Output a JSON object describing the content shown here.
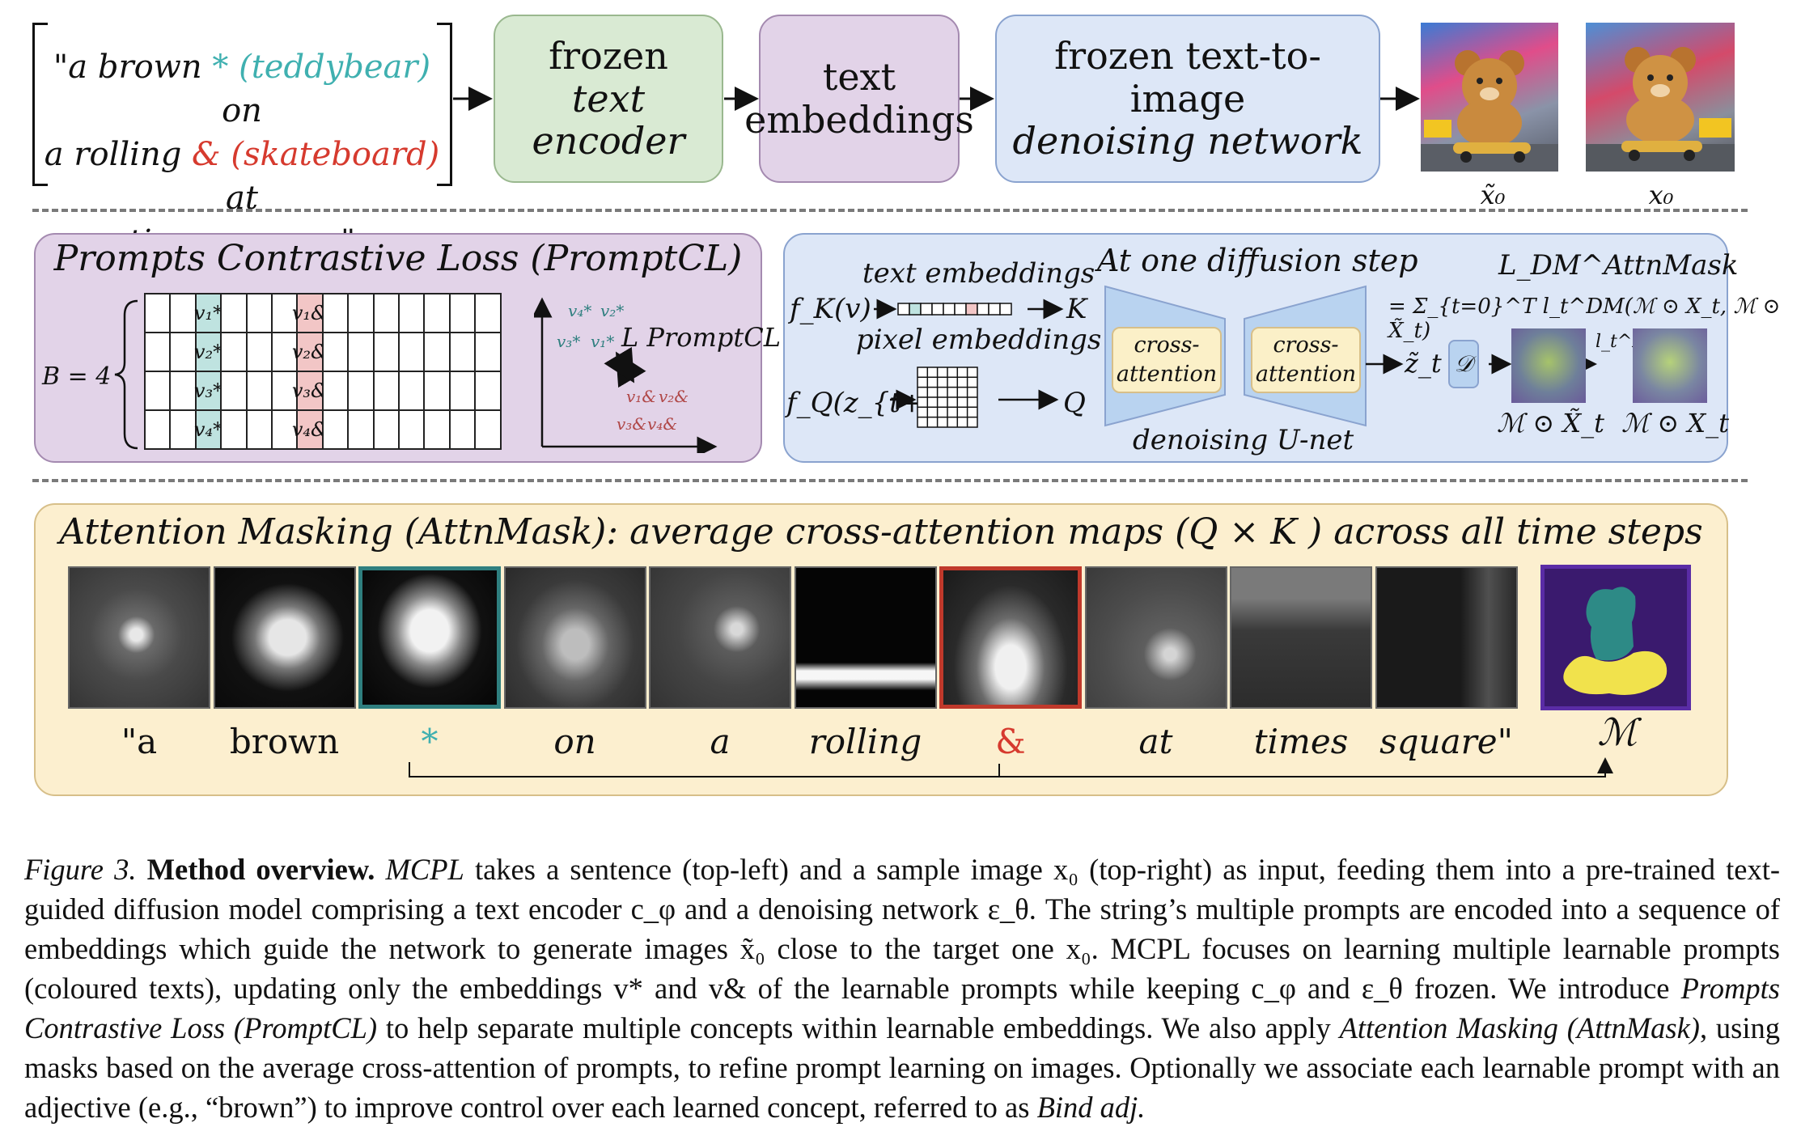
{
  "top_row": {
    "prompt_line1_a": "\"a brown ",
    "prompt_star": "*",
    "prompt_teddy": "(teddybear)",
    "prompt_line1_b": " on",
    "prompt_line2_a": "a rolling ",
    "prompt_amp": "&",
    "prompt_skate": "(skateboard)",
    "prompt_line2_b": " at",
    "prompt_line3": "times square\"",
    "encoder_line1": "frozen",
    "encoder_line2": "text encoder",
    "embeddings_line1": "text",
    "embeddings_line2": "embeddings",
    "denoise_line1": "frozen text-to-image",
    "denoise_line2": "denoising network",
    "label_x0_tilde": "x̃₀",
    "label_x0": "x₀"
  },
  "promptcl": {
    "title": "Prompts Contrastive Loss (PromptCL)",
    "batch_label": "B = 4",
    "v_star": [
      "v₁*",
      "v₂*",
      "v₃*",
      "v₄*"
    ],
    "v_amp": [
      "v₁&",
      "v₂&",
      "v₃&",
      "v₄&"
    ],
    "loss_label": "L PromptCL",
    "scatter_star": [
      "v₄*",
      "v₂*",
      "v₃*",
      "v₁*"
    ],
    "scatter_amp": [
      "v₁&",
      "v₂&",
      "v₃&",
      "v₄&"
    ]
  },
  "diffusion": {
    "text_embeddings": "text embeddings",
    "fk": "f_K(v)",
    "k": "K",
    "pixel_embeddings": "pixel embeddings",
    "fq": "f_Q(z_{t+1})",
    "q": "Q",
    "title": "At one diffusion step",
    "cross_attention": "cross-attention",
    "unet": "denoising U-net",
    "zt": "z̃_t",
    "d": "𝒟",
    "loss_title": "L_DM^AttnMask",
    "loss_formula": "= Σ_{t=0}^T l_t^DM(ℳ ⊙ X_t, ℳ ⊙ X̃_t)",
    "ltdm": "l_t^DM",
    "masked_left": "ℳ ⊙ X̃_t",
    "masked_right": "ℳ ⊙ X_t"
  },
  "attnmask": {
    "title": "Attention Masking (AttnMask): average cross-attention maps (Q × K ) across all time steps",
    "tokens": [
      "\"a",
      "brown",
      "*",
      "on",
      "a",
      "rolling",
      "&",
      "at",
      "times",
      "square\""
    ],
    "mask_label": "ℳ"
  },
  "caption": {
    "fig": "Figure 3.",
    "bold": "Method overview.",
    "text1": "MCPL",
    "text2": "takes a sentence (top-left) and a sample image x₀ (top-right) as input, feeding them into a pre-trained text-guided diffusion model comprising a text encoder c_φ and a denoising network ε_θ. The string’s multiple prompts are encoded into a sequence of embeddings which guide the network to generate images x̃₀ close to the target one x₀. MCPL focuses on learning multiple learnable prompts (coloured texts), updating only the embeddings v* and v& of the learnable prompts while keeping c_φ and ε_θ frozen. We introduce",
    "text3": "Prompts Contrastive Loss (PromptCL)",
    "text4": "to help separate multiple concepts within learnable embeddings. We also apply",
    "text5": "Attention Masking (AttnMask)",
    "text6": ", using masks based on the average cross-attention of prompts, to refine prompt learning on images. Optionally we associate each learnable prompt with an adjective (e.g., “brown”) to improve control over each learned concept, referred to as",
    "text7": "Bind adj."
  },
  "colors": {
    "teal": "#3fb0b0",
    "red": "#d63a2e",
    "mask_bg": "#3a1a6e",
    "mask_teddy": "#2d8a86",
    "mask_board": "#f1e24c"
  }
}
